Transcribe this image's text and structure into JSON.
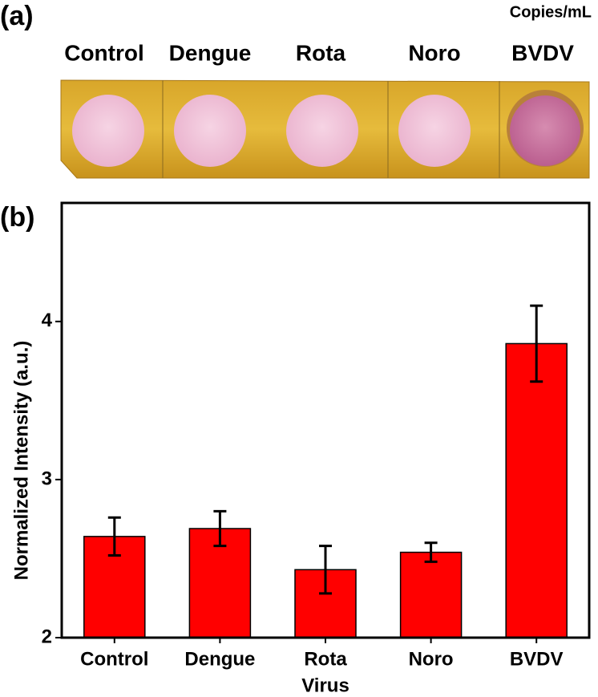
{
  "panel_a": {
    "label": "(a)",
    "unit": "Copies/mL",
    "samples": [
      "Control",
      "Dengue",
      "Rota",
      "Noro",
      "BVDV"
    ]
  },
  "chart_data": {
    "type": "bar",
    "panel_label": "(b)",
    "x_label": "Virus",
    "y_label": "Normalized Intensity (a.u.)",
    "categories": [
      "Control",
      "Dengue",
      "Rota",
      "Noro",
      "BVDV"
    ],
    "values": [
      2.64,
      2.69,
      2.43,
      2.54,
      3.86
    ],
    "errors": [
      0.12,
      0.11,
      0.15,
      0.06,
      0.24
    ],
    "color": "#ff0000",
    "ylim": [
      2,
      4.75
    ],
    "yticks": [
      2,
      3,
      4
    ]
  }
}
